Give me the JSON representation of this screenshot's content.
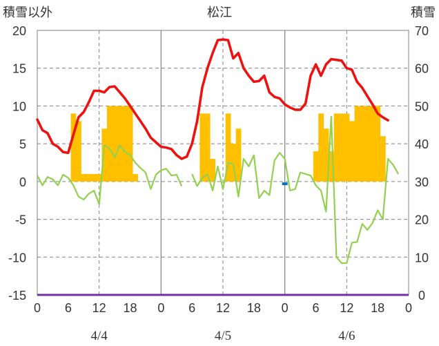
{
  "chart_data": {
    "type": "line",
    "title": "松江",
    "ylabel_left": "積雪以外",
    "ylabel_right": "積雪",
    "y_left": {
      "min": -15,
      "max": 20,
      "ticks": [
        "20",
        "15",
        "10",
        "5",
        "0",
        "-5",
        "-10",
        "-15"
      ]
    },
    "y_right": {
      "min": 0,
      "max": 70,
      "ticks": [
        "70",
        "60",
        "50",
        "40",
        "30",
        "20",
        "10",
        "0"
      ]
    },
    "x": {
      "min": 0,
      "max": 72,
      "tick_hours": [
        0,
        6,
        12,
        18,
        24,
        30,
        36,
        42,
        48,
        54,
        60,
        66,
        72
      ],
      "tick_labels": [
        "0",
        "6",
        "12",
        "18",
        "0",
        "6",
        "12",
        "18",
        "0",
        "6",
        "12",
        "18",
        "0"
      ],
      "day_boundaries": [
        24,
        48
      ],
      "noon_lines": [
        12,
        36,
        60
      ],
      "date_labels": [
        {
          "hour": 12,
          "text": "4/4"
        },
        {
          "hour": 36,
          "text": "4/5"
        },
        {
          "hour": 60,
          "text": "4/6"
        }
      ]
    },
    "colors": {
      "temperature": "#ee1111",
      "wind": "#92d050",
      "precipitation": "#ffc000",
      "snow_depth": "#7030a0",
      "marker": "#0070c0"
    },
    "series": [
      {
        "key": "temperature",
        "axis": "left",
        "points": [
          [
            0,
            8.2
          ],
          [
            1,
            6.8
          ],
          [
            2,
            6.4
          ],
          [
            3,
            5
          ],
          [
            4,
            4.6
          ],
          [
            5,
            3.9
          ],
          [
            6,
            3.8
          ],
          [
            7,
            6.2
          ],
          [
            8,
            8.5
          ],
          [
            9,
            9.2
          ],
          [
            10,
            10.5
          ],
          [
            11,
            12
          ],
          [
            12,
            12
          ],
          [
            13,
            11.8
          ],
          [
            14,
            12.5
          ],
          [
            15,
            12.6
          ],
          [
            16,
            11.8
          ],
          [
            17,
            11
          ],
          [
            18,
            10
          ],
          [
            19,
            9
          ],
          [
            20,
            8
          ],
          [
            21,
            7
          ],
          [
            22,
            5.8
          ],
          [
            23,
            5.2
          ],
          [
            24,
            4.6
          ],
          [
            25,
            4.5
          ],
          [
            26,
            4.3
          ],
          [
            27,
            3.5
          ],
          [
            28,
            3
          ],
          [
            29,
            3.3
          ],
          [
            30,
            5
          ],
          [
            31,
            8
          ],
          [
            32,
            12.5
          ],
          [
            33,
            15
          ],
          [
            34,
            17
          ],
          [
            35,
            18.7
          ],
          [
            36,
            18.8
          ],
          [
            37,
            18.7
          ],
          [
            38,
            16.3
          ],
          [
            39,
            17
          ],
          [
            40,
            15
          ],
          [
            41,
            14
          ],
          [
            42,
            13.2
          ],
          [
            43,
            13.3
          ],
          [
            44,
            14
          ],
          [
            45,
            11.8
          ],
          [
            46,
            11.2
          ],
          [
            47,
            11
          ],
          [
            48,
            10.2
          ],
          [
            49,
            9.8
          ],
          [
            50,
            9.5
          ],
          [
            51,
            9.5
          ],
          [
            52,
            10.3
          ],
          [
            53,
            14
          ],
          [
            54,
            15.5
          ],
          [
            55,
            14
          ],
          [
            56,
            15.5
          ],
          [
            57,
            16.2
          ],
          [
            58,
            16.1
          ],
          [
            59,
            16
          ],
          [
            60,
            15
          ],
          [
            61,
            14.8
          ],
          [
            62,
            13.2
          ],
          [
            63,
            12.4
          ],
          [
            64,
            11.3
          ],
          [
            65,
            10.2
          ],
          [
            66,
            9
          ],
          [
            67,
            8.5
          ],
          [
            68,
            8.1
          ]
        ]
      },
      {
        "key": "wind",
        "axis": "left",
        "segments": [
          [
            [
              0,
              0.8
            ],
            [
              1,
              -0.5
            ],
            [
              2,
              0.6
            ],
            [
              3,
              0.3
            ],
            [
              4,
              -0.5
            ],
            [
              5,
              0.9
            ],
            [
              6,
              0.5
            ],
            [
              7,
              -0.5
            ],
            [
              8,
              -2
            ],
            [
              9,
              -2.4
            ],
            [
              10,
              -1.6
            ],
            [
              11,
              -1.2
            ],
            [
              12,
              -3
            ],
            [
              13,
              4.8
            ],
            [
              14,
              4.4
            ],
            [
              15,
              3.2
            ],
            [
              16,
              4.8
            ],
            [
              17,
              3.9
            ],
            [
              18,
              3.5
            ],
            [
              19,
              2.5
            ],
            [
              20,
              1.8
            ],
            [
              21,
              1.2
            ],
            [
              22,
              -1
            ],
            [
              23,
              0.9
            ],
            [
              24,
              1.5
            ],
            [
              25,
              1.7
            ],
            [
              26,
              0.8
            ],
            [
              27,
              0.9
            ],
            [
              28,
              -0.6
            ]
          ],
          [
            [
              30,
              1
            ],
            [
              31,
              -0.6
            ],
            [
              32,
              0.5
            ],
            [
              33,
              1
            ],
            [
              34,
              -1.2
            ],
            [
              35,
              2
            ],
            [
              36,
              -1
            ],
            [
              37,
              2.5
            ],
            [
              38,
              2.3
            ],
            [
              39,
              -2
            ],
            [
              40,
              3
            ],
            [
              41,
              2
            ],
            [
              42,
              3.5
            ],
            [
              43,
              -2.2
            ],
            [
              44,
              -1.2
            ],
            [
              45,
              -1.8
            ],
            [
              46,
              2.8
            ],
            [
              47,
              3.8
            ],
            [
              48,
              3
            ],
            [
              49,
              -1.2
            ],
            [
              50,
              -1
            ],
            [
              51,
              1.2
            ],
            [
              52,
              1
            ],
            [
              53,
              0.8
            ],
            [
              54,
              -0.5
            ],
            [
              55,
              -1.2
            ],
            [
              56,
              -4
            ],
            [
              57,
              8.6
            ],
            [
              58,
              -10
            ],
            [
              59,
              -10.8
            ],
            [
              60,
              -10.8
            ],
            [
              61,
              -8.1
            ],
            [
              62,
              -8
            ],
            [
              63,
              -5.6
            ],
            [
              64,
              -6.4
            ],
            [
              65,
              -5.5
            ],
            [
              66,
              -3.8
            ],
            [
              67,
              -5
            ],
            [
              68,
              3
            ],
            [
              69,
              2.2
            ],
            [
              70,
              1
            ]
          ]
        ]
      },
      {
        "key": "precipitation",
        "axis": "left",
        "type": "bar",
        "bars": [
          [
            7,
            9
          ],
          [
            8,
            8
          ],
          [
            9,
            1
          ],
          [
            10,
            1
          ],
          [
            11,
            1
          ],
          [
            12,
            1
          ],
          [
            13,
            7
          ],
          [
            14,
            10
          ],
          [
            15,
            10
          ],
          [
            16,
            10
          ],
          [
            17,
            10
          ],
          [
            18,
            10
          ],
          [
            19,
            1
          ],
          [
            32,
            9
          ],
          [
            33,
            9
          ],
          [
            34,
            3
          ],
          [
            37,
            9
          ],
          [
            38,
            5
          ],
          [
            39,
            7
          ],
          [
            54,
            4
          ],
          [
            55,
            9
          ],
          [
            56,
            7
          ],
          [
            57,
            4
          ],
          [
            58,
            9
          ],
          [
            59,
            9
          ],
          [
            60,
            9
          ],
          [
            61,
            8
          ],
          [
            62,
            10
          ],
          [
            63,
            10
          ],
          [
            64,
            10
          ],
          [
            65,
            10
          ],
          [
            66,
            10
          ],
          [
            67,
            6
          ]
        ]
      },
      {
        "key": "snow_depth",
        "axis": "right",
        "points": [
          [
            0,
            0
          ],
          [
            72,
            0
          ]
        ]
      }
    ],
    "marker_point": [
      48,
      -0.3
    ]
  }
}
